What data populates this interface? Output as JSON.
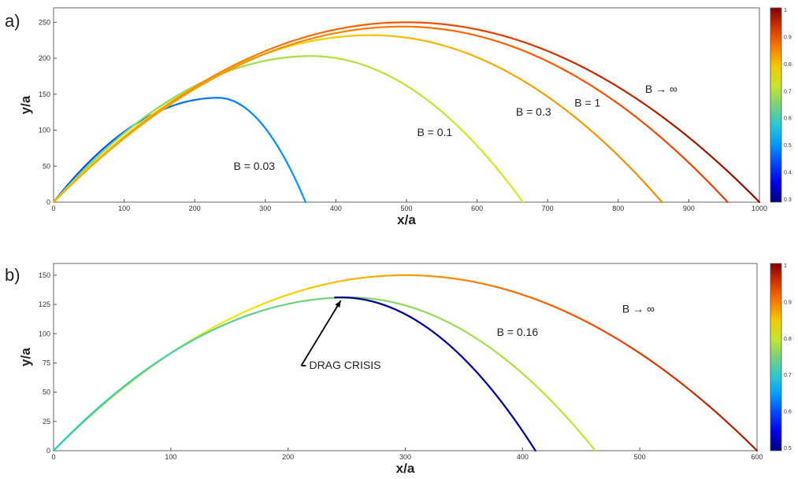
{
  "chart_data": [
    {
      "type": "line",
      "panel_label": "a)",
      "xlabel": "x/a",
      "ylabel": "y/a",
      "xlim": [
        0,
        1000
      ],
      "ylim": [
        0,
        270
      ],
      "xticks": [
        0,
        100,
        200,
        300,
        400,
        500,
        600,
        700,
        800,
        900,
        1000
      ],
      "yticks": [
        0,
        50,
        100,
        150,
        200,
        250
      ],
      "colorbar": {
        "ticks": [
          "1",
          "0.9",
          "0.8",
          "0.7",
          "0.6",
          "0.5",
          "0.4",
          "0.3"
        ],
        "label_values": [
          1,
          0.9,
          0.8,
          0.7,
          0.6,
          0.5,
          0.4,
          0.3
        ]
      },
      "series": [
        {
          "name": "B = 0.03",
          "range_x": 357,
          "max_height": 145,
          "apex_x": 233,
          "c0": 0.2,
          "c1": 0.3
        },
        {
          "name": "B = 0.1",
          "range_x": 665,
          "max_height": 203,
          "apex_x": 365,
          "c0": 0.5,
          "c1": 0.62
        },
        {
          "name": "B = 0.3",
          "range_x": 862,
          "max_height": 232,
          "apex_x": 450,
          "c0": 0.62,
          "c1": 0.78
        },
        {
          "name": "B = 1",
          "range_x": 955,
          "max_height": 244,
          "apex_x": 495,
          "c0": 0.72,
          "c1": 0.88
        },
        {
          "name": "B → ∞",
          "range_x": 1000,
          "max_height": 250,
          "apex_x": 500,
          "c0": 0.72,
          "c1": 0.98
        }
      ],
      "annotations": [
        {
          "text": "B = 0.03",
          "x": 255,
          "y": 45
        },
        {
          "text": "B = 0.1",
          "x": 515,
          "y": 92
        },
        {
          "text": "B = 0.3",
          "x": 655,
          "y": 120
        },
        {
          "text": "B = 1",
          "x": 738,
          "y": 133
        },
        {
          "text": "B → ∞",
          "x": 838,
          "y": 152
        }
      ]
    },
    {
      "type": "line",
      "panel_label": "b)",
      "xlabel": "x/a",
      "ylabel": "y/a",
      "xlim": [
        0,
        600
      ],
      "ylim": [
        0,
        160
      ],
      "xticks": [
        0,
        100,
        200,
        300,
        400,
        500,
        600
      ],
      "yticks": [
        0,
        25,
        50,
        75,
        100,
        125,
        150
      ],
      "colorbar": {
        "ticks": [
          "1",
          "0.9",
          "0.8",
          "0.7",
          "0.6",
          "0.5"
        ],
        "label_values": [
          1,
          0.9,
          0.8,
          0.7,
          0.6,
          0.5
        ]
      },
      "series": [
        {
          "name": "B → ∞",
          "range_x": 600,
          "max_height": 150,
          "apex_x": 300,
          "c0": 0.55,
          "c1": 0.95
        },
        {
          "name": "B = 0.16",
          "range_x": 462,
          "max_height": 131,
          "apex_x": 252,
          "c0": 0.4,
          "c1": 0.6
        },
        {
          "name": "DRAG CRISIS",
          "range_x": 411,
          "max_height": 131,
          "apex_x": 245,
          "branch_from": 240,
          "c0": 0.0,
          "c1": 0.05
        }
      ],
      "annotations": [
        {
          "text": "B → ∞",
          "x": 485,
          "y": 118
        },
        {
          "text": "B = 0.16",
          "x": 378,
          "y": 98
        },
        {
          "text": "DRAG CRISIS",
          "x": 218,
          "y": 70,
          "arrow_to_x": 245,
          "arrow_to_y": 131
        }
      ]
    }
  ]
}
